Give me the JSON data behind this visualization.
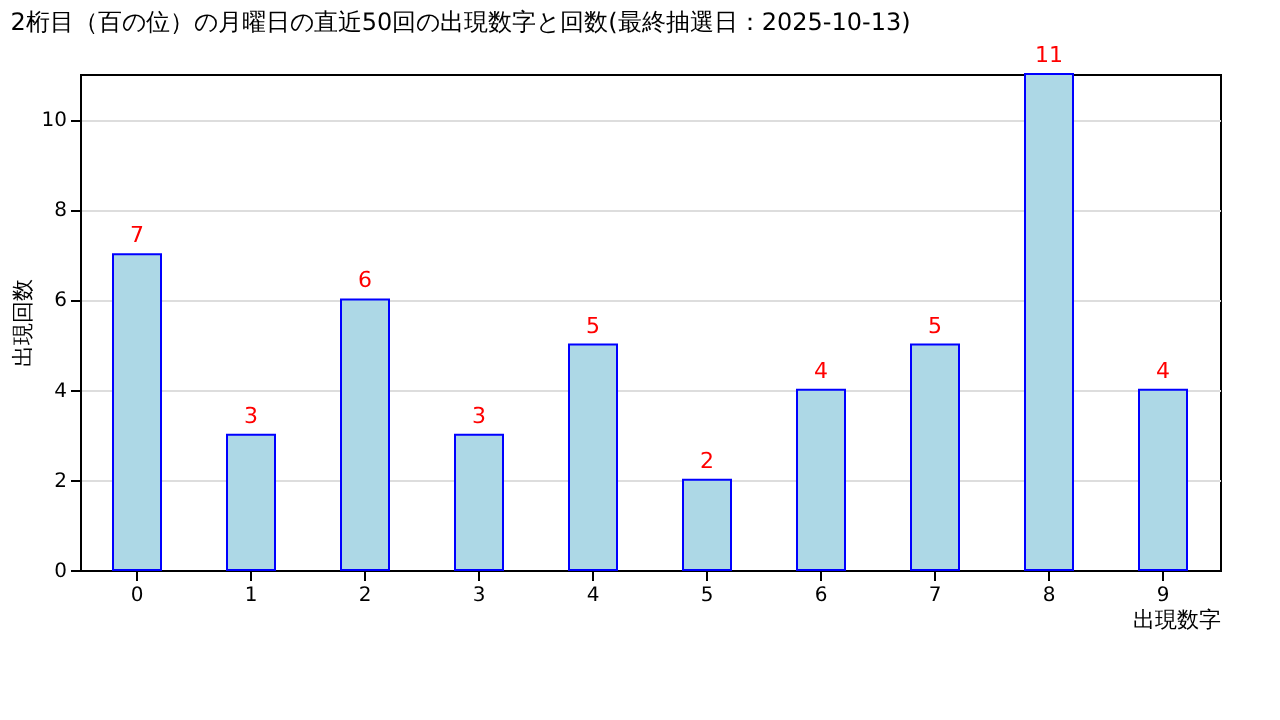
{
  "chart_data": {
    "type": "bar",
    "title": "2桁目（百の位）の月曜日の直近50回の出現数字と回数(最終抽選日：2025-10-13)",
    "xlabel": "出現数字",
    "ylabel": "出現回数",
    "categories": [
      "0",
      "1",
      "2",
      "3",
      "4",
      "5",
      "6",
      "7",
      "8",
      "9"
    ],
    "values": [
      7,
      3,
      6,
      3,
      5,
      2,
      4,
      5,
      11,
      4
    ],
    "color": "#add8e6",
    "ylim": [
      0,
      11
    ],
    "yticks": [
      0,
      2,
      4,
      6,
      8,
      10
    ],
    "grid": "y",
    "data_labels": true
  }
}
